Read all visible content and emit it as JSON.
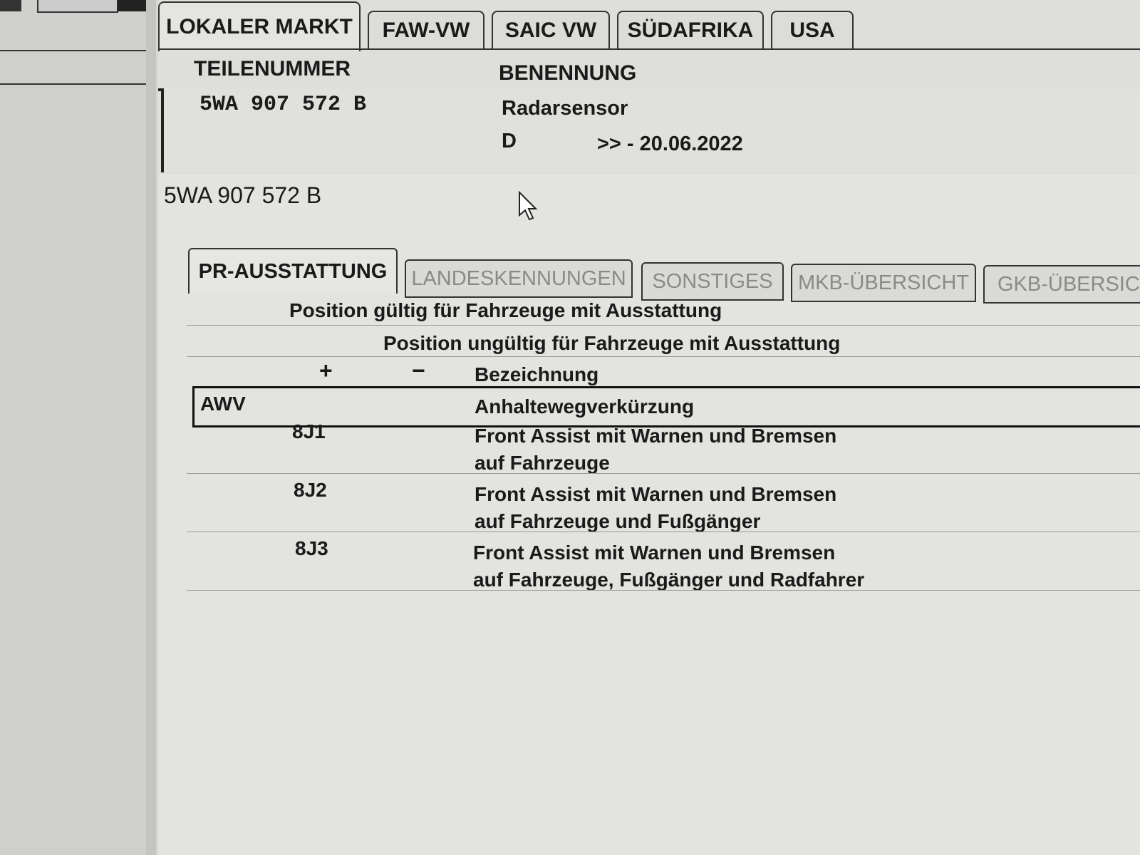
{
  "top_tabs": [
    "LOKALER MARKT",
    "FAW-VW",
    "SAIC VW",
    "SÜDAFRIKA",
    "USA"
  ],
  "active_top_tab": "LOKALER MARKT",
  "header": {
    "part_number_label": "TEILENUMMER",
    "name_label": "BENENNUNG"
  },
  "part": {
    "number": "5WA 907 572 B",
    "name": "Radarsensor",
    "market": "D",
    "validity": ">> - 20.06.2022"
  },
  "detail": {
    "part_number": "5WA 907 572 B",
    "tabs": [
      "PR-AUSSTATTUNG",
      "LANDESKENNUNGEN",
      "SONSTIGES",
      "MKB-ÜBERSICHT",
      "GKB-ÜBERSICHT"
    ],
    "active_tab": "PR-AUSSTATTUNG",
    "legend_valid": "Position gültig für Fahrzeuge mit Ausstattung",
    "legend_invalid": "Position ungültig für Fahrzeuge mit Ausstattung",
    "columns": {
      "plus": "+",
      "minus": "−",
      "description": "Bezeichnung"
    },
    "family": {
      "code": "AWV",
      "description": "Anhaltewegverkürzung"
    },
    "rows": [
      {
        "plus": "8J1",
        "line1": "Front Assist mit Warnen und Bremsen",
        "line2": "auf Fahrzeuge"
      },
      {
        "plus": "8J2",
        "line1": "Front Assist mit Warnen und Bremsen",
        "line2": "auf Fahrzeuge und Fußgänger"
      },
      {
        "plus": "8J3",
        "line1": "Front Assist mit Warnen und Bremsen",
        "line2": "auf Fahrzeuge, Fußgänger und Radfahrer"
      }
    ]
  }
}
